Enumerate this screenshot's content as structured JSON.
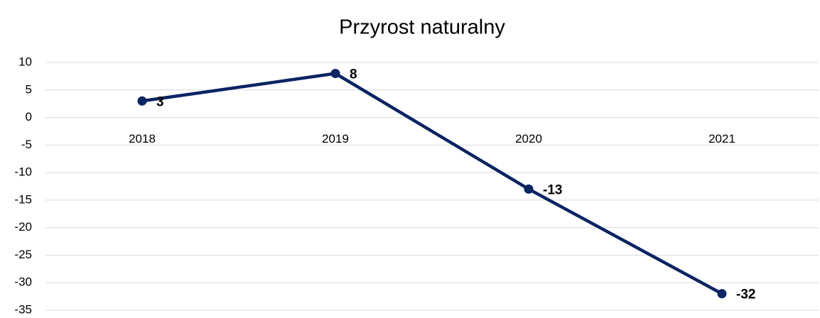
{
  "chart_data": {
    "type": "line",
    "title": "Przyrost naturalny",
    "categories": [
      "2018",
      "2019",
      "2020",
      "2021"
    ],
    "values": [
      3,
      8,
      -13,
      -32
    ],
    "color": "#0b2462",
    "ylim": [
      -35,
      10
    ],
    "yticks": [
      -35,
      -30,
      -25,
      -20,
      -15,
      -10,
      -5,
      0,
      5,
      10
    ],
    "grid": true
  }
}
